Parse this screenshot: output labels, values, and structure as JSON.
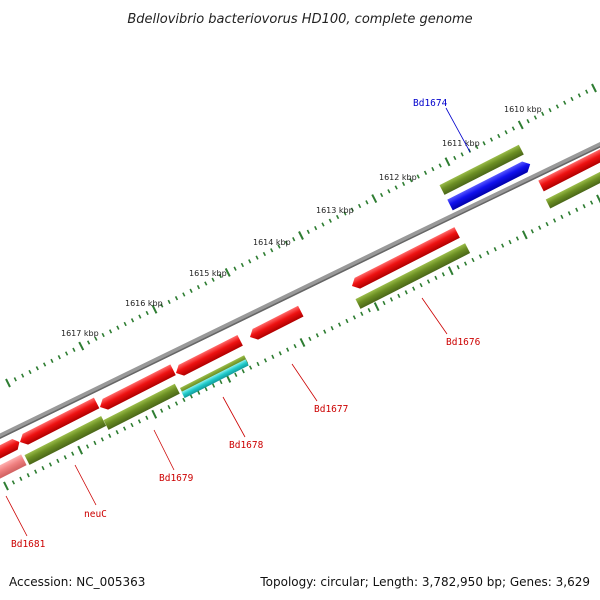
{
  "title": "Bdellovibrio bacteriovorus HD100, complete genome",
  "footer": {
    "accession": "Accession: NC_005363",
    "summary": "Topology: circular; Length: 3,782,950 bp; Genes: 3,629"
  },
  "scale_labels": [
    "1610 kbp",
    "1611 kbp",
    "1612 kbp",
    "1613 kbp",
    "1614 kbp",
    "1615 kbp",
    "1616 kbp",
    "1617 kbp"
  ],
  "gene_labels": [
    {
      "text": "Bd1674",
      "color": "#0000cc"
    },
    {
      "text": "Bd1676",
      "color": "#cc0000"
    },
    {
      "text": "Bd1677",
      "color": "#cc0000"
    },
    {
      "text": "Bd1678",
      "color": "#cc0000"
    },
    {
      "text": "Bd1679",
      "color": "#cc0000"
    },
    {
      "text": "neuC",
      "color": "#cc0000"
    },
    {
      "text": "Bd1681",
      "color": "#cc0000"
    }
  ],
  "colors": {
    "backbone": "#888888",
    "cds": "#ee1111",
    "gene": "#6b8e23",
    "highlight_gene": "#1111ee",
    "rna_like": "#22cccc",
    "faded_cds": "#f08080",
    "scale_ticks": "#2e7d32"
  }
}
